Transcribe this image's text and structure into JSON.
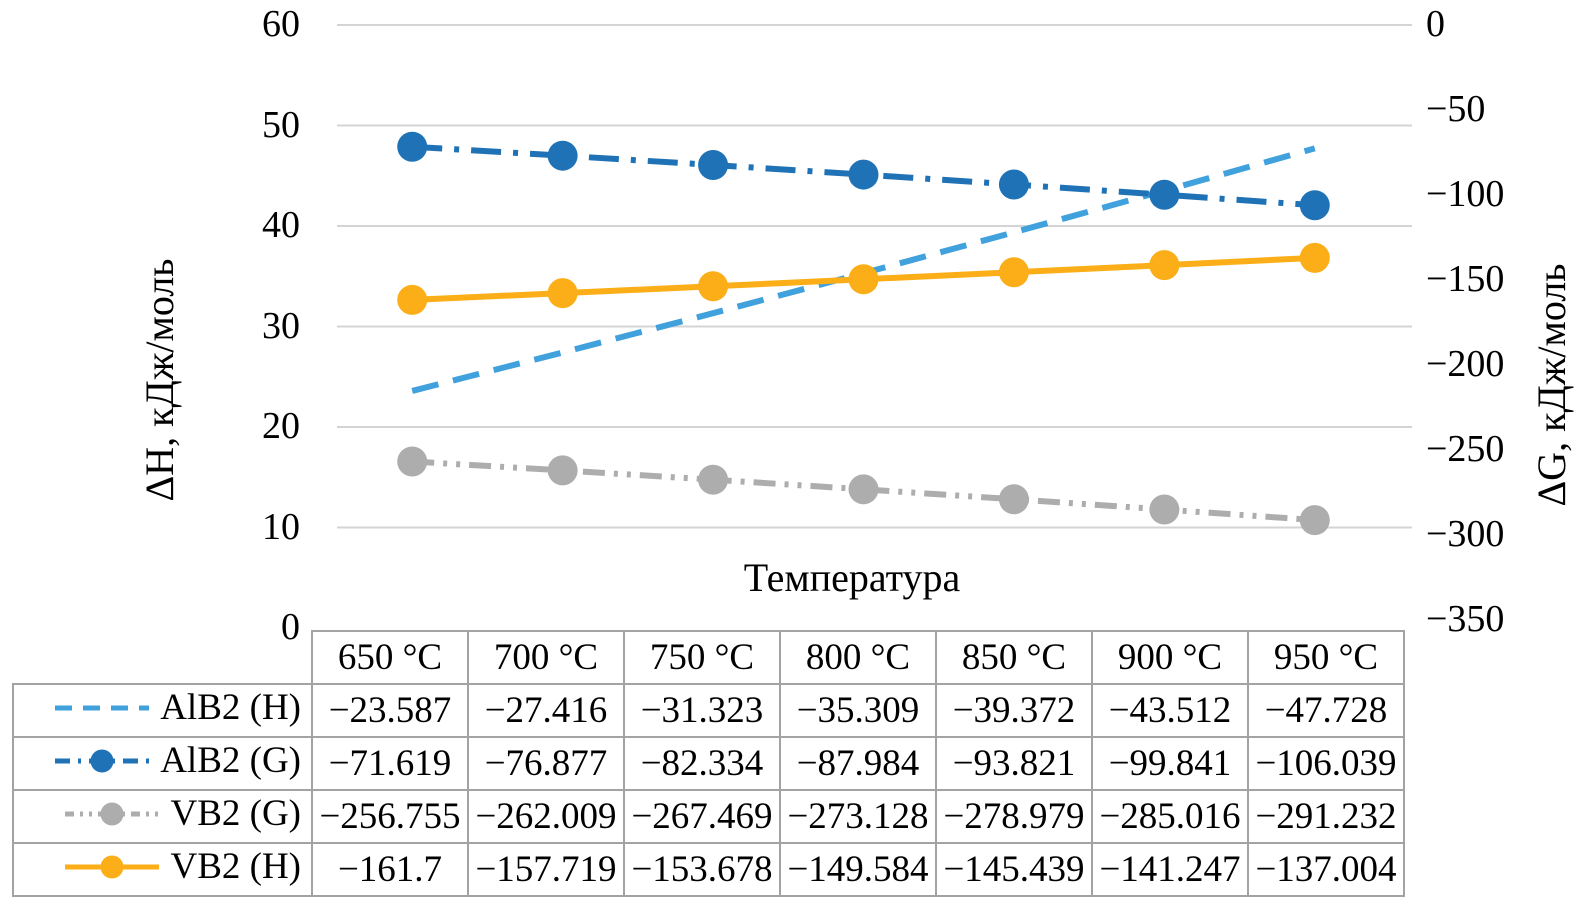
{
  "chart_data": {
    "type": "line",
    "x_axis_label": "Температура",
    "categories": [
      "650 °C",
      "700 °C",
      "750 °C",
      "800 °C",
      "850 °C",
      "900 °C",
      "950 °C"
    ],
    "left_axis": {
      "label": "ΔH, кДж/моль",
      "range": [
        0,
        60
      ],
      "tick_labels": [
        "60",
        "50",
        "40",
        "30",
        "20",
        "10",
        "0"
      ],
      "tick_values": [
        60,
        50,
        40,
        30,
        20,
        10,
        0
      ],
      "grid": true
    },
    "right_axis": {
      "label": "ΔG, кДж/моль",
      "range": [
        -350,
        0
      ],
      "tick_labels": [
        "0",
        "−50",
        "−100",
        "−150",
        "−200",
        "−250",
        "−300",
        "−350"
      ],
      "tick_values": [
        0,
        -50,
        -100,
        -150,
        -200,
        -250,
        -300,
        -350
      ]
    },
    "gridline_color": "#d4d4d4",
    "legend_position": "table-left-column",
    "series": [
      {
        "name": "AlB2 (H)",
        "axis": "left",
        "plotted_as_magnitude": true,
        "color": "#41a1dc",
        "line_style": "long-dash",
        "marker": false,
        "values": [
          -23.587,
          -27.416,
          -31.323,
          -35.309,
          -39.372,
          -43.512,
          -47.728
        ]
      },
      {
        "name": "AlB2 (G)",
        "axis": "right",
        "plotted_as_magnitude": false,
        "color": "#1f72b5",
        "line_style": "long-dash-dot",
        "marker": true,
        "values": [
          -71.619,
          -76.877,
          -82.334,
          -87.984,
          -93.821,
          -99.841,
          -106.039
        ]
      },
      {
        "name": "VB2 (G)",
        "axis": "right",
        "plotted_as_magnitude": false,
        "color": "#adadad",
        "line_style": "dash-dot-dot",
        "marker": true,
        "values": [
          -256.755,
          -262.009,
          -267.469,
          -273.128,
          -278.979,
          -285.016,
          -291.232
        ]
      },
      {
        "name": "VB2 (H)",
        "axis": "right",
        "plotted_as_magnitude": false,
        "color": "#fbae17",
        "line_style": "solid",
        "marker": true,
        "values": [
          -161.7,
          -157.719,
          -153.678,
          -149.584,
          -145.439,
          -141.247,
          -137.004
        ]
      }
    ]
  },
  "table": {
    "corner_label": "",
    "column_headers": [
      "650 °C",
      "700 °C",
      "750 °C",
      "800 °C",
      "850 °C",
      "900 °C",
      "950 °C"
    ],
    "rows": [
      {
        "label": "AlB2 (H)",
        "cells": [
          "−23.587",
          "−27.416",
          "−31.323",
          "−35.309",
          "−39.372",
          "−43.512",
          "−47.728"
        ]
      },
      {
        "label": "AlB2 (G)",
        "cells": [
          "−71.619",
          "−76.877",
          "−82.334",
          "−87.984",
          "−93.821",
          "−99.841",
          "−106.039"
        ]
      },
      {
        "label": "VB2 (G)",
        "cells": [
          "−256.755",
          "−262.009",
          "−267.469",
          "−273.128",
          "−278.979",
          "−285.016",
          "−291.232"
        ]
      },
      {
        "label": "VB2 (H)",
        "cells": [
          "−161.7",
          "−157.719",
          "−153.678",
          "−149.584",
          "−145.439",
          "−141.247",
          "−137.004"
        ]
      }
    ]
  }
}
